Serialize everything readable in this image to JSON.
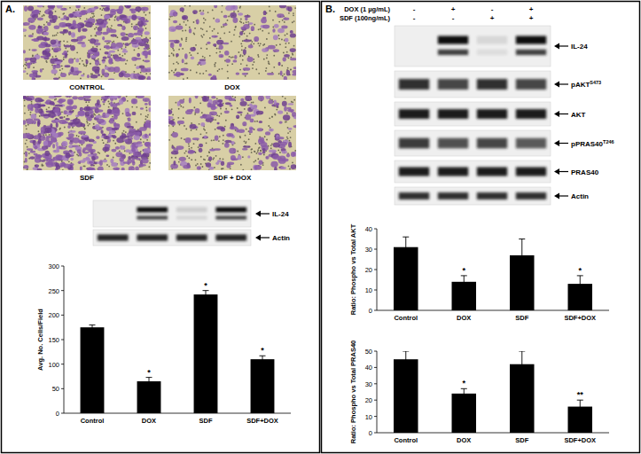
{
  "panels": {
    "a": {
      "label": "A.",
      "images": [
        {
          "caption": "CONTROL"
        },
        {
          "caption": "DOX"
        },
        {
          "caption": "SDF"
        },
        {
          "caption": "SDF + DOX"
        }
      ],
      "blot": {
        "rows": [
          {
            "text": "IL-24"
          },
          {
            "text": "Actin"
          }
        ]
      }
    },
    "b": {
      "label": "B.",
      "treatments": [
        {
          "name": "DOX (1 µg/mL)",
          "lanes": [
            "-",
            "+",
            "-",
            "+"
          ]
        },
        {
          "name": "SDF (100ng/mL)",
          "lanes": [
            "-",
            "-",
            "+",
            "+"
          ]
        }
      ],
      "blot": {
        "rows": [
          {
            "text": "IL-24"
          },
          {
            "text": "pAKT",
            "sup": "S473"
          },
          {
            "text": "AKT"
          },
          {
            "text": "pPRAS40",
            "sup": "T246"
          },
          {
            "text": "PRAS40"
          },
          {
            "text": "Actin"
          }
        ]
      }
    }
  },
  "chart_data": [
    {
      "type": "bar",
      "ylabel": "Avg. No. Cells/Field",
      "categories": [
        "Control",
        "DOX",
        "SDF",
        "SDF+DOX"
      ],
      "values": [
        175,
        65,
        242,
        110
      ],
      "errors": [
        5,
        8,
        8,
        7
      ],
      "significance": [
        null,
        "*",
        "*",
        "*"
      ],
      "color": "#000000",
      "ylim": [
        0,
        300
      ],
      "yticks": [
        0,
        50,
        100,
        150,
        200,
        250,
        300
      ],
      "grid": false
    },
    {
      "type": "bar",
      "ylabel": "Ratio: Phospho vs Total AKT",
      "categories": [
        "Control",
        "DOX",
        "SDF",
        "SDF+DOX"
      ],
      "values": [
        31,
        14,
        27,
        13
      ],
      "errors": [
        5,
        3,
        8,
        4
      ],
      "significance": [
        null,
        "*",
        null,
        "*"
      ],
      "color": "#000000",
      "ylim": [
        0,
        40
      ],
      "yticks": [
        0,
        10,
        20,
        30,
        40
      ],
      "grid": false
    },
    {
      "type": "bar",
      "ylabel": "Ratio: Phospho vs Total PRAS40",
      "categories": [
        "Control",
        "DOX",
        "SDF",
        "SDF+DOX"
      ],
      "values": [
        45,
        24,
        42,
        16
      ],
      "errors": [
        5,
        3,
        8,
        4
      ],
      "significance": [
        null,
        "*",
        null,
        "**"
      ],
      "color": "#000000",
      "ylim": [
        0,
        50
      ],
      "yticks": [
        0,
        10,
        20,
        30,
        40,
        50
      ],
      "grid": false
    }
  ]
}
